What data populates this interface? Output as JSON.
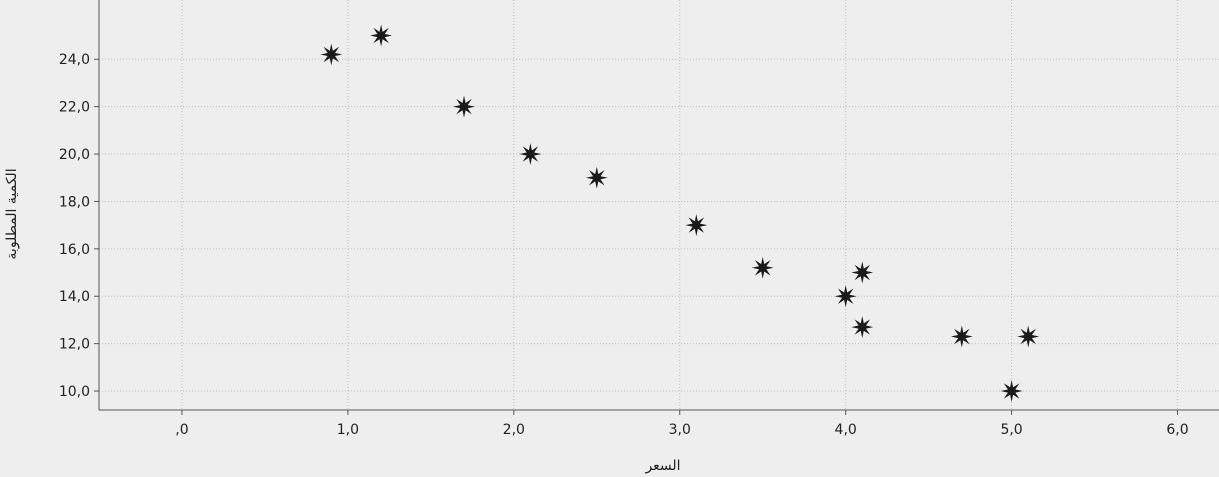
{
  "chart_data": {
    "type": "scatter",
    "xlabel": "السعر",
    "ylabel": "الكمية المطلوبة",
    "xlim": [
      -0.5,
      6.25
    ],
    "ylim": [
      9.2,
      26.5
    ],
    "x_ticks": [
      0,
      1,
      2,
      3,
      4,
      5,
      6
    ],
    "x_tick_labels": [
      ",0",
      "1,0",
      "2,0",
      "3,0",
      "4,0",
      "5,0",
      "6,0"
    ],
    "y_ticks": [
      10,
      12,
      14,
      16,
      18,
      20,
      22,
      24
    ],
    "y_tick_labels": [
      "10,0",
      "12,0",
      "14,0",
      "16,0",
      "18,0",
      "20,0",
      "22,0",
      "24,0"
    ],
    "grid": true,
    "marker": "star",
    "marker_color": "#1a1a1a",
    "points": [
      {
        "x": 0.9,
        "y": 24.2
      },
      {
        "x": 1.2,
        "y": 25.0
      },
      {
        "x": 1.7,
        "y": 22.0
      },
      {
        "x": 2.1,
        "y": 20.0
      },
      {
        "x": 2.5,
        "y": 19.0
      },
      {
        "x": 3.1,
        "y": 17.0
      },
      {
        "x": 3.5,
        "y": 15.2
      },
      {
        "x": 4.0,
        "y": 14.0
      },
      {
        "x": 4.1,
        "y": 15.0
      },
      {
        "x": 4.1,
        "y": 12.7
      },
      {
        "x": 4.7,
        "y": 12.3
      },
      {
        "x": 5.1,
        "y": 12.3
      },
      {
        "x": 5.0,
        "y": 10.0
      }
    ]
  }
}
